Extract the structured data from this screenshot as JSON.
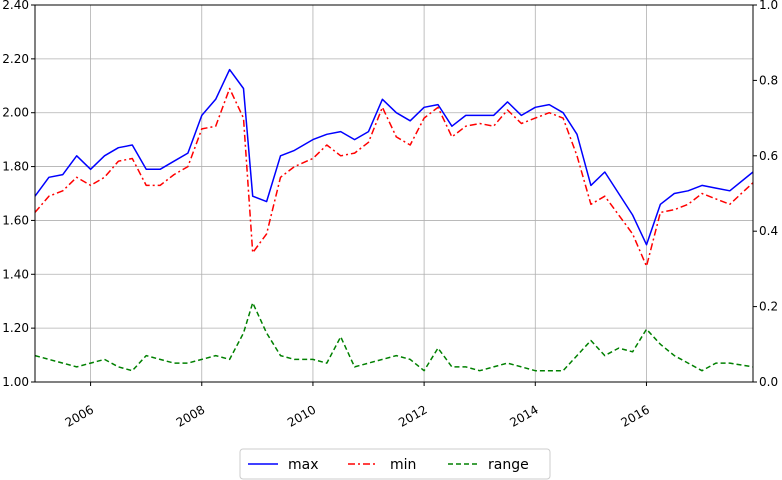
{
  "chart_data": {
    "type": "line",
    "grid": true,
    "legend_position": "bottom-center",
    "x_range": [
      "2005-01",
      "2017-12"
    ],
    "x_ticks": [
      "2006",
      "2008",
      "2010",
      "2012",
      "2014",
      "2016"
    ],
    "y_left_range": [
      1.0,
      2.4
    ],
    "y_left_ticks": [
      "1.00",
      "1.20",
      "1.40",
      "1.60",
      "1.80",
      "2.00",
      "2.20",
      "2.40"
    ],
    "y_right_range": [
      0.0,
      1.0
    ],
    "y_right_ticks": [
      "0.0",
      "0.2",
      "0.4",
      "0.6",
      "0.8",
      "1.0"
    ],
    "series": [
      {
        "name": "max",
        "axis": "left",
        "color": "#0000ff",
        "style": "solid",
        "points": [
          [
            "2005-01",
            1.69
          ],
          [
            "2005-04",
            1.76
          ],
          [
            "2005-07",
            1.77
          ],
          [
            "2005-10",
            1.84
          ],
          [
            "2006-01",
            1.79
          ],
          [
            "2006-04",
            1.84
          ],
          [
            "2006-07",
            1.87
          ],
          [
            "2006-10",
            1.88
          ],
          [
            "2007-01",
            1.79
          ],
          [
            "2007-04",
            1.79
          ],
          [
            "2007-07",
            1.82
          ],
          [
            "2007-10",
            1.85
          ],
          [
            "2008-01",
            1.99
          ],
          [
            "2008-04",
            2.05
          ],
          [
            "2008-07",
            2.16
          ],
          [
            "2008-10",
            2.09
          ],
          [
            "2008-12",
            1.69
          ],
          [
            "2009-03",
            1.67
          ],
          [
            "2009-06",
            1.84
          ],
          [
            "2009-09",
            1.86
          ],
          [
            "2010-01",
            1.9
          ],
          [
            "2010-04",
            1.92
          ],
          [
            "2010-07",
            1.93
          ],
          [
            "2010-10",
            1.9
          ],
          [
            "2011-01",
            1.93
          ],
          [
            "2011-04",
            2.05
          ],
          [
            "2011-07",
            2.0
          ],
          [
            "2011-10",
            1.97
          ],
          [
            "2012-01",
            2.02
          ],
          [
            "2012-04",
            2.03
          ],
          [
            "2012-07",
            1.95
          ],
          [
            "2012-10",
            1.99
          ],
          [
            "2013-01",
            1.99
          ],
          [
            "2013-04",
            1.99
          ],
          [
            "2013-07",
            2.04
          ],
          [
            "2013-10",
            1.99
          ],
          [
            "2014-01",
            2.02
          ],
          [
            "2014-04",
            2.03
          ],
          [
            "2014-07",
            2.0
          ],
          [
            "2014-10",
            1.92
          ],
          [
            "2015-01",
            1.73
          ],
          [
            "2015-04",
            1.78
          ],
          [
            "2015-07",
            1.7
          ],
          [
            "2015-10",
            1.62
          ],
          [
            "2016-01",
            1.51
          ],
          [
            "2016-04",
            1.66
          ],
          [
            "2016-07",
            1.7
          ],
          [
            "2016-10",
            1.71
          ],
          [
            "2017-01",
            1.73
          ],
          [
            "2017-04",
            1.72
          ],
          [
            "2017-07",
            1.71
          ],
          [
            "2017-12",
            1.78
          ]
        ]
      },
      {
        "name": "min",
        "axis": "left",
        "color": "#ff0000",
        "style": "dashdot",
        "points": [
          [
            "2005-01",
            1.63
          ],
          [
            "2005-04",
            1.69
          ],
          [
            "2005-07",
            1.71
          ],
          [
            "2005-10",
            1.76
          ],
          [
            "2006-01",
            1.73
          ],
          [
            "2006-04",
            1.76
          ],
          [
            "2006-07",
            1.82
          ],
          [
            "2006-10",
            1.83
          ],
          [
            "2007-01",
            1.73
          ],
          [
            "2007-04",
            1.73
          ],
          [
            "2007-07",
            1.77
          ],
          [
            "2007-10",
            1.8
          ],
          [
            "2008-01",
            1.94
          ],
          [
            "2008-04",
            1.95
          ],
          [
            "2008-07",
            2.09
          ],
          [
            "2008-10",
            1.98
          ],
          [
            "2008-12",
            1.48
          ],
          [
            "2009-03",
            1.55
          ],
          [
            "2009-06",
            1.76
          ],
          [
            "2009-09",
            1.8
          ],
          [
            "2010-01",
            1.83
          ],
          [
            "2010-04",
            1.88
          ],
          [
            "2010-07",
            1.84
          ],
          [
            "2010-10",
            1.85
          ],
          [
            "2011-01",
            1.89
          ],
          [
            "2011-04",
            2.02
          ],
          [
            "2011-07",
            1.91
          ],
          [
            "2011-10",
            1.88
          ],
          [
            "2012-01",
            1.98
          ],
          [
            "2012-04",
            2.02
          ],
          [
            "2012-07",
            1.91
          ],
          [
            "2012-10",
            1.95
          ],
          [
            "2013-01",
            1.96
          ],
          [
            "2013-04",
            1.95
          ],
          [
            "2013-07",
            2.01
          ],
          [
            "2013-10",
            1.96
          ],
          [
            "2014-01",
            1.98
          ],
          [
            "2014-04",
            2.0
          ],
          [
            "2014-07",
            1.98
          ],
          [
            "2014-10",
            1.84
          ],
          [
            "2015-01",
            1.66
          ],
          [
            "2015-04",
            1.69
          ],
          [
            "2015-07",
            1.62
          ],
          [
            "2015-10",
            1.55
          ],
          [
            "2016-01",
            1.43
          ],
          [
            "2016-04",
            1.63
          ],
          [
            "2016-07",
            1.64
          ],
          [
            "2016-10",
            1.66
          ],
          [
            "2017-01",
            1.7
          ],
          [
            "2017-04",
            1.68
          ],
          [
            "2017-07",
            1.66
          ],
          [
            "2017-12",
            1.74
          ]
        ]
      },
      {
        "name": "range",
        "axis": "right",
        "color": "#008000",
        "style": "dashed",
        "points": [
          [
            "2005-01",
            0.07
          ],
          [
            "2005-04",
            0.06
          ],
          [
            "2005-07",
            0.05
          ],
          [
            "2005-10",
            0.04
          ],
          [
            "2006-01",
            0.05
          ],
          [
            "2006-04",
            0.06
          ],
          [
            "2006-07",
            0.04
          ],
          [
            "2006-10",
            0.03
          ],
          [
            "2007-01",
            0.07
          ],
          [
            "2007-04",
            0.06
          ],
          [
            "2007-07",
            0.05
          ],
          [
            "2007-10",
            0.05
          ],
          [
            "2008-01",
            0.06
          ],
          [
            "2008-04",
            0.07
          ],
          [
            "2008-07",
            0.06
          ],
          [
            "2008-10",
            0.13
          ],
          [
            "2008-12",
            0.21
          ],
          [
            "2009-03",
            0.13
          ],
          [
            "2009-06",
            0.07
          ],
          [
            "2009-09",
            0.06
          ],
          [
            "2010-01",
            0.06
          ],
          [
            "2010-04",
            0.05
          ],
          [
            "2010-07",
            0.12
          ],
          [
            "2010-10",
            0.04
          ],
          [
            "2011-01",
            0.05
          ],
          [
            "2011-04",
            0.06
          ],
          [
            "2011-07",
            0.07
          ],
          [
            "2011-10",
            0.06
          ],
          [
            "2012-01",
            0.03
          ],
          [
            "2012-04",
            0.09
          ],
          [
            "2012-07",
            0.04
          ],
          [
            "2012-10",
            0.04
          ],
          [
            "2013-01",
            0.03
          ],
          [
            "2013-04",
            0.04
          ],
          [
            "2013-07",
            0.05
          ],
          [
            "2013-10",
            0.04
          ],
          [
            "2014-01",
            0.03
          ],
          [
            "2014-04",
            0.03
          ],
          [
            "2014-07",
            0.03
          ],
          [
            "2014-10",
            0.07
          ],
          [
            "2015-01",
            0.11
          ],
          [
            "2015-04",
            0.07
          ],
          [
            "2015-07",
            0.09
          ],
          [
            "2015-10",
            0.08
          ],
          [
            "2016-01",
            0.14
          ],
          [
            "2016-04",
            0.1
          ],
          [
            "2016-07",
            0.07
          ],
          [
            "2016-10",
            0.05
          ],
          [
            "2017-01",
            0.03
          ],
          [
            "2017-04",
            0.05
          ],
          [
            "2017-07",
            0.05
          ],
          [
            "2017-12",
            0.04
          ]
        ]
      }
    ]
  }
}
